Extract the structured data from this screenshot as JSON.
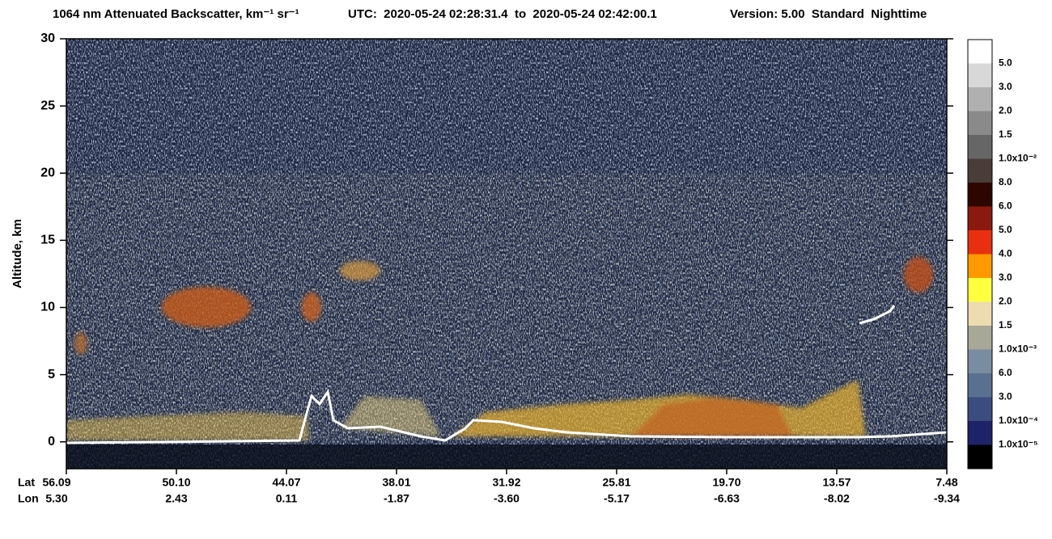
{
  "chart_data": {
    "type": "curtain",
    "title": "1064 nm Attenuated Backscatter, km⁻¹ sr⁻¹",
    "time_range": "UTC:  2020-05-24 02:28:31.4  to  2020-05-24 02:42:00.1",
    "version": "Version: 5.00  Standard  Nighttime",
    "y_label": "Altitude, km",
    "ylim": [
      -2,
      30
    ],
    "yticks": [
      0,
      5,
      10,
      15,
      20,
      25,
      30
    ],
    "x_rows": [
      {
        "name": "Lat",
        "labels": [
          "56.09",
          "50.10",
          "44.07",
          "38.01",
          "31.92",
          "25.81",
          "19.70",
          "13.57",
          "7.48"
        ]
      },
      {
        "name": "Lon",
        "labels": [
          "5.30",
          "2.43",
          "0.11",
          "-1.87",
          "-3.60",
          "-5.17",
          "-6.63",
          "-8.02",
          "-9.34"
        ]
      }
    ],
    "colorbar": {
      "colors": [
        "#ffffff",
        "#d8d8d8",
        "#b0b0b0",
        "#8a8a8a",
        "#666666",
        "#4a3c38",
        "#2d0600",
        "#8a1a10",
        "#e83010",
        "#ff9900",
        "#ffff40",
        "#ecdcb0",
        "#a8a898",
        "#7a8ca0",
        "#5a7090",
        "#3c4c80",
        "#1e2268",
        "#000000"
      ],
      "labels": [
        "5.0",
        "3.0",
        "2.0",
        "1.5",
        "1.0x10⁻²",
        "8.0",
        "6.0",
        "5.0",
        "4.0",
        "3.0",
        "2.0",
        "1.5",
        "1.0x10⁻³",
        "6.0",
        "3.0",
        "1.0x10⁻⁴",
        "1.0x10⁻⁵"
      ]
    }
  }
}
